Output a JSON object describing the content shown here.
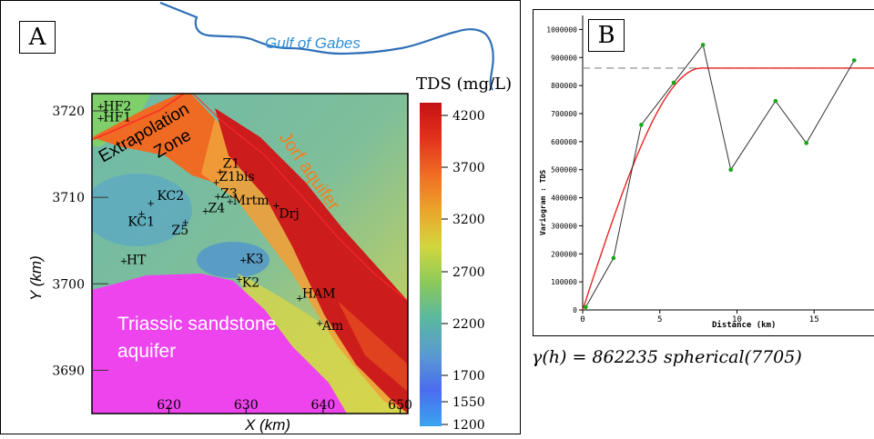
{
  "panel_a": {
    "letter": "A",
    "sea_label": "Gulf of Gabes",
    "legend_title": "TDS (mg/L)",
    "zone_labels": {
      "extrapolation": "Extrapolation\nZone",
      "jorf": "Jorf aquifer",
      "triassic": "Triassic sandstone\naquifer"
    },
    "points": [
      "HF2",
      "HF1",
      "Z1",
      "Z1bis",
      "Z3",
      "Mrtm",
      "Z4",
      "Z5",
      "KC2",
      "KC1",
      "Drj",
      "HT",
      "K3",
      "K2",
      "HAM",
      "Am"
    ],
    "colors": {
      "sea_line": "#2f6fb6",
      "triassic": "#ee44ee",
      "jorf": "#cc1c1c",
      "extrapolation": "#e8621e",
      "boundary": "#ff2a2a"
    }
  },
  "panel_b": {
    "letter": "B",
    "formula": "γ(h) = 862235 spherical(7705)",
    "colors": {
      "experimental": "#333333",
      "points": "#11aa11",
      "model": "#ee2222",
      "sill": "#888888"
    }
  },
  "chart_data": [
    {
      "type": "heatmap",
      "title": "",
      "xlabel": "X (km)",
      "ylabel": "Y (km)",
      "xlim": [
        610,
        651
      ],
      "ylim": [
        3685,
        3722
      ],
      "x_ticks": [
        "620",
        "630",
        "640",
        "650"
      ],
      "y_ticks": [
        "3690",
        "3700",
        "3710",
        "3720"
      ],
      "colorbar": {
        "label": "TDS (mg/L)",
        "ticks": [
          "4200",
          "3700",
          "3200",
          "2700",
          "2200",
          "1700",
          "1550",
          "1200"
        ],
        "colors": [
          "#c41212",
          "#e3321c",
          "#f06d25",
          "#eba52a",
          "#d2d73e",
          "#8cc95a",
          "#5ab8a0",
          "#5a9ad0",
          "#4a6cf0",
          "#3aa6ef"
        ]
      }
    },
    {
      "type": "scatter",
      "title": "",
      "xlabel": "Distance (km)",
      "ylabel": "Variogram : TDS",
      "xlim": [
        0,
        19
      ],
      "ylim": [
        0,
        1050000
      ],
      "x_ticks": [
        "0",
        "5",
        "10",
        "15"
      ],
      "y_ticks": [
        "0",
        "100000",
        "200000",
        "300000",
        "400000",
        "500000",
        "600000",
        "700000",
        "800000",
        "900000",
        "1000000"
      ],
      "series": [
        {
          "x": [
            0.2,
            2.0,
            3.8,
            5.9,
            7.8,
            9.6,
            12.5,
            14.5,
            17.6
          ],
          "y": [
            10000,
            185000,
            660000,
            810000,
            945000,
            500000,
            745000,
            595000,
            890000
          ]
        }
      ],
      "model": {
        "type": "spherical",
        "sill": 862235,
        "range": 7.705
      }
    }
  ]
}
